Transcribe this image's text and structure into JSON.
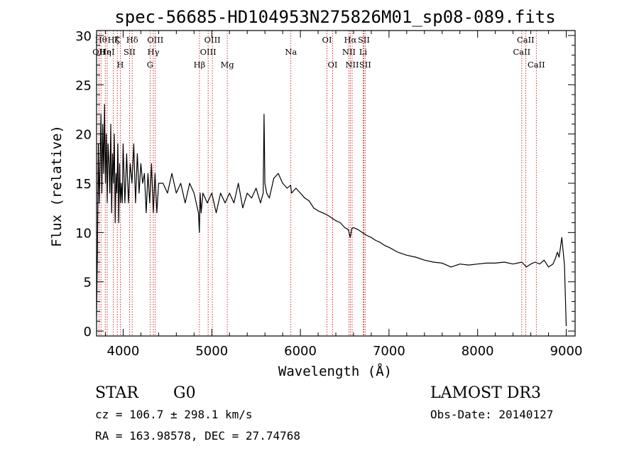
{
  "chart_data": {
    "type": "line",
    "title": "spec-56685-HD104953N275826M01_sp08-089.fits",
    "xlabel": "Wavelength (Å)",
    "ylabel": "Flux (relative)",
    "xlim": [
      3700,
      9100
    ],
    "ylim": [
      -0.5,
      30.5
    ],
    "xticks": [
      4000,
      5000,
      6000,
      7000,
      8000,
      9000
    ],
    "yticks": [
      0,
      5,
      10,
      15,
      20,
      25,
      30
    ],
    "grid": false,
    "series": [
      {
        "x": [
          3700,
          3710,
          3720,
          3730,
          3740,
          3750,
          3760,
          3770,
          3780,
          3790,
          3800,
          3810,
          3820,
          3830,
          3840,
          3850,
          3860,
          3870,
          3880,
          3890,
          3900,
          3910,
          3920,
          3930,
          3940,
          3950,
          3960,
          3970,
          3980,
          3990,
          4000,
          4020,
          4040,
          4060,
          4080,
          4100,
          4120,
          4140,
          4160,
          4180,
          4200,
          4220,
          4240,
          4260,
          4280,
          4300,
          4320,
          4340,
          4360,
          4380,
          4400,
          4450,
          4500,
          4550,
          4600,
          4650,
          4700,
          4750,
          4800,
          4850,
          4860,
          4870,
          4880,
          4900,
          4950,
          5000,
          5050,
          5100,
          5150,
          5200,
          5250,
          5300,
          5350,
          5400,
          5450,
          5500,
          5550,
          5580,
          5590,
          5600,
          5620,
          5650,
          5700,
          5750,
          5800,
          5850,
          5890,
          5900,
          5950,
          6000,
          6050,
          6100,
          6150,
          6200,
          6250,
          6300,
          6350,
          6400,
          6450,
          6500,
          6540,
          6563,
          6580,
          6600,
          6650,
          6700,
          6750,
          6800,
          6850,
          6900,
          6950,
          7000,
          7100,
          7200,
          7300,
          7400,
          7500,
          7600,
          7700,
          7800,
          7900,
          8000,
          8100,
          8200,
          8300,
          8400,
          8500,
          8550,
          8600,
          8650,
          8700,
          8750,
          8800,
          8850,
          8880,
          8900,
          8920,
          8950,
          8980,
          9000
        ],
        "values": [
          1.5,
          8,
          19,
          13,
          17,
          22,
          14,
          21,
          16,
          23,
          15,
          20,
          13,
          19,
          17,
          14,
          21,
          12,
          18,
          15,
          20,
          11,
          16,
          14,
          19,
          11,
          17,
          13,
          15,
          13,
          19,
          13,
          18,
          13,
          17,
          15,
          19,
          13,
          18,
          14,
          17,
          15,
          16,
          12,
          16,
          13,
          17,
          12,
          16,
          12,
          15,
          15,
          14,
          16,
          14,
          15,
          13,
          15,
          14,
          12,
          10,
          14,
          12,
          14,
          13,
          14,
          12,
          14,
          13,
          14,
          13,
          15,
          12.5,
          14,
          13.5,
          14.5,
          13,
          14,
          22,
          15,
          14,
          13.5,
          15.5,
          16,
          15,
          14.5,
          14.8,
          14,
          14.5,
          14,
          13.5,
          13.2,
          12.5,
          12.2,
          12,
          11.8,
          11.5,
          11.2,
          11,
          10.5,
          10.3,
          9.5,
          10.4,
          10.5,
          10.3,
          10,
          9.7,
          9.5,
          9.2,
          9,
          8.7,
          8.5,
          8,
          7.7,
          7.5,
          7.2,
          7,
          6.9,
          6.5,
          6.8,
          6.7,
          6.8,
          6.9,
          6.9,
          7,
          6.8,
          7,
          6.5,
          6.8,
          7,
          6.8,
          7.2,
          6.5,
          6.8,
          7.4,
          8,
          7.5,
          9.5,
          6.7,
          0.5
        ]
      }
    ],
    "lines": [
      {
        "name": "OII",
        "x": 3727,
        "row": 2
      },
      {
        "name": "Hθ",
        "x": 3750,
        "row": 1
      },
      {
        "name": "Hη",
        "x": 3798,
        "row": 2
      },
      {
        "name": "HeI",
        "x": 3820,
        "row": 2
      },
      {
        "name": "Hζ",
        "x": 3889,
        "row": 1
      },
      {
        "name": "K",
        "x": 3934,
        "row": 1
      },
      {
        "name": "H",
        "x": 3968,
        "row": 3
      },
      {
        "name": "SII",
        "x": 4072,
        "row": 2
      },
      {
        "name": "Hδ",
        "x": 4102,
        "row": 1
      },
      {
        "name": "G",
        "x": 4304,
        "row": 3
      },
      {
        "name": "Hγ",
        "x": 4341,
        "row": 2
      },
      {
        "name": "OIII",
        "x": 4363,
        "row": 1
      },
      {
        "name": "Hβ",
        "x": 4861,
        "row": 3
      },
      {
        "name": "OIII",
        "x": 4959,
        "row": 2
      },
      {
        "name": "OIII",
        "x": 5007,
        "row": 1
      },
      {
        "name": "Mg",
        "x": 5175,
        "row": 3
      },
      {
        "name": "Na",
        "x": 5893,
        "row": 2
      },
      {
        "name": "OI",
        "x": 6300,
        "row": 1
      },
      {
        "name": "OI",
        "x": 6364,
        "row": 3
      },
      {
        "name": "NII",
        "x": 6548,
        "row": 2
      },
      {
        "name": "Hα",
        "x": 6563,
        "row": 1
      },
      {
        "name": "NII",
        "x": 6584,
        "row": 3
      },
      {
        "name": "Li",
        "x": 6708,
        "row": 2
      },
      {
        "name": "SII",
        "x": 6716,
        "row": 1
      },
      {
        "name": "SII",
        "x": 6731,
        "row": 3
      },
      {
        "name": "CaII",
        "x": 8498,
        "row": 2
      },
      {
        "name": "CaII",
        "x": 8542,
        "row": 1
      },
      {
        "name": "CaII",
        "x": 8662,
        "row": 3
      }
    ],
    "line_color": "#cc0000",
    "spectrum_color": "#000000"
  },
  "info": {
    "class": "STAR",
    "subclass": "G0",
    "survey": "LAMOST DR3",
    "cz": "cz = 106.7 ± 298.1 km/s",
    "obsdate": "Obs-Date: 20140127",
    "radec": "RA = 163.98578, DEC =  27.74768"
  }
}
